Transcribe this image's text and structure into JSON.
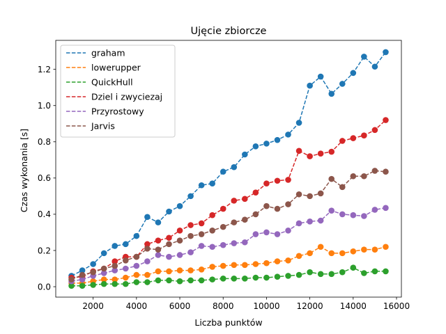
{
  "chart_data": {
    "type": "line",
    "title": "Ujęcie zbiorcze",
    "xlabel": "Liczba punktów",
    "ylabel": "Czas wykonania [s]",
    "xlim": [
      275,
      16225
    ],
    "ylim": [
      -0.0575,
      1.36
    ],
    "xticks": [
      2000,
      4000,
      6000,
      8000,
      10000,
      12000,
      14000,
      16000
    ],
    "yticks": [
      0.0,
      0.2,
      0.4,
      0.6,
      0.8,
      1.0,
      1.2
    ],
    "xtick_labels": [
      "2000",
      "4000",
      "6000",
      "8000",
      "10000",
      "12000",
      "14000",
      "16000"
    ],
    "ytick_labels": [
      "0.0",
      "0.2",
      "0.4",
      "0.6",
      "0.8",
      "1.0",
      "1.2"
    ],
    "legend_position": "top-left",
    "grid": false,
    "x": [
      1000,
      1500,
      2000,
      2500,
      3000,
      3500,
      4000,
      4500,
      5000,
      5500,
      6000,
      6500,
      7000,
      7500,
      8000,
      8500,
      9000,
      9500,
      10000,
      10500,
      11000,
      11500,
      12000,
      12500,
      13000,
      13500,
      14000,
      14500,
      15000,
      15500
    ],
    "series": [
      {
        "name": "graham",
        "color": "#1f77b4",
        "values": [
          0.06,
          0.09,
          0.125,
          0.185,
          0.225,
          0.235,
          0.28,
          0.385,
          0.355,
          0.415,
          0.445,
          0.5,
          0.56,
          0.57,
          0.635,
          0.66,
          0.73,
          0.775,
          0.79,
          0.81,
          0.84,
          0.905,
          1.11,
          1.16,
          1.065,
          1.12,
          1.18,
          1.27,
          1.215,
          1.295
        ]
      },
      {
        "name": "lowerupper",
        "color": "#ff7f0e",
        "values": [
          0.02,
          0.02,
          0.03,
          0.04,
          0.04,
          0.05,
          0.065,
          0.065,
          0.085,
          0.085,
          0.09,
          0.09,
          0.095,
          0.11,
          0.115,
          0.12,
          0.12,
          0.125,
          0.13,
          0.14,
          0.145,
          0.17,
          0.185,
          0.22,
          0.185,
          0.185,
          0.195,
          0.205,
          0.205,
          0.22
        ]
      },
      {
        "name": "QuickHull",
        "color": "#2ca02c",
        "values": [
          0.005,
          0.005,
          0.01,
          0.015,
          0.015,
          0.015,
          0.025,
          0.025,
          0.035,
          0.035,
          0.03,
          0.035,
          0.035,
          0.04,
          0.045,
          0.045,
          0.045,
          0.05,
          0.05,
          0.055,
          0.06,
          0.065,
          0.08,
          0.07,
          0.07,
          0.08,
          0.105,
          0.075,
          0.085,
          0.085
        ]
      },
      {
        "name": "Dziel i zwyciezaj",
        "color": "#d62728",
        "values": [
          0.05,
          0.055,
          0.085,
          0.1,
          0.14,
          0.165,
          0.165,
          0.235,
          0.255,
          0.27,
          0.31,
          0.34,
          0.35,
          0.395,
          0.43,
          0.475,
          0.485,
          0.52,
          0.57,
          0.585,
          0.59,
          0.75,
          0.72,
          0.735,
          0.745,
          0.805,
          0.82,
          0.835,
          0.865,
          0.92
        ]
      },
      {
        "name": "Przyrostowy",
        "color": "#9467bd",
        "values": [
          0.03,
          0.04,
          0.06,
          0.075,
          0.09,
          0.1,
          0.115,
          0.14,
          0.175,
          0.165,
          0.175,
          0.19,
          0.225,
          0.22,
          0.23,
          0.24,
          0.245,
          0.29,
          0.3,
          0.29,
          0.31,
          0.35,
          0.36,
          0.365,
          0.42,
          0.4,
          0.395,
          0.39,
          0.425,
          0.435
        ]
      },
      {
        "name": "Jarvis",
        "color": "#8c564b",
        "values": [
          0.04,
          0.065,
          0.08,
          0.1,
          0.115,
          0.145,
          0.165,
          0.21,
          0.205,
          0.235,
          0.255,
          0.28,
          0.29,
          0.31,
          0.33,
          0.355,
          0.37,
          0.4,
          0.445,
          0.43,
          0.455,
          0.51,
          0.5,
          0.515,
          0.595,
          0.55,
          0.61,
          0.61,
          0.64,
          0.635
        ]
      }
    ]
  }
}
